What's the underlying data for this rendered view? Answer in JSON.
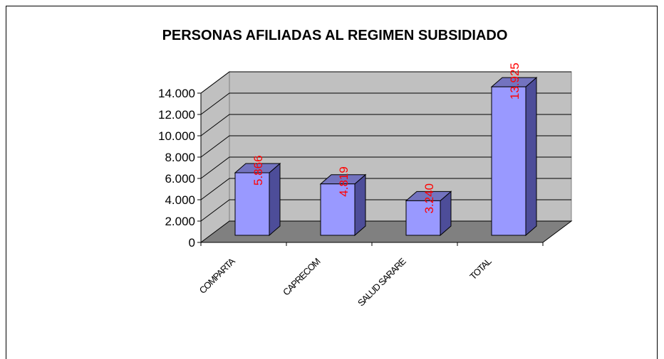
{
  "chart_data": {
    "type": "bar3d",
    "title": "PERSONAS AFILIADAS AL REGIMEN SUBSIDIADO",
    "categories": [
      "COMPARTA",
      "CAPRECOM",
      "SALUD SARARE",
      "TOTAL"
    ],
    "values": [
      5866,
      4819,
      3240,
      13925
    ],
    "value_labels": [
      "5.866",
      "4.819",
      "3.240",
      "13.925"
    ],
    "color": "#9999ff",
    "ylim": [
      0,
      14000
    ],
    "yticks": [
      0,
      {
        "value": 2000,
        "label": "2.000"
      },
      {
        "value": 4000,
        "label": "4.000"
      },
      {
        "value": 6000,
        "label": "6.000"
      },
      {
        "value": 8000,
        "label": "8.000"
      },
      {
        "value": 10000,
        "label": "10.000"
      },
      {
        "value": 12000,
        "label": "12.000"
      },
      {
        "value": 14000,
        "label": "14.000"
      }
    ],
    "grid": true
  }
}
